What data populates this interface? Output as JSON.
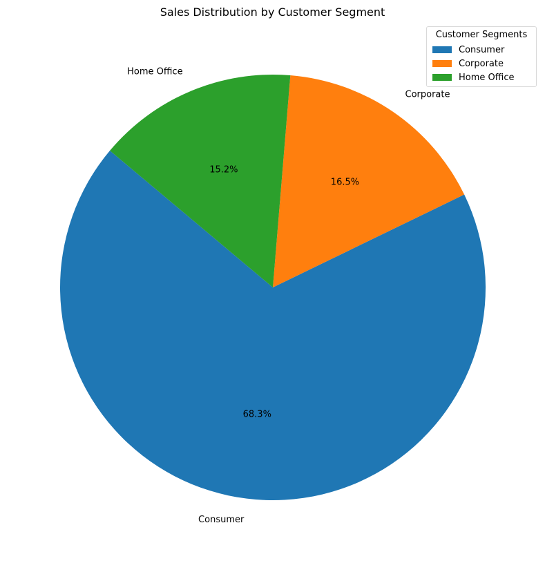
{
  "chart_data": {
    "type": "pie",
    "title": "Sales Distribution by Customer Segment",
    "categories": [
      "Consumer",
      "Corporate",
      "Home Office"
    ],
    "values": [
      68.3,
      16.5,
      15.2
    ],
    "value_labels": [
      "68.3%",
      "16.5%",
      "15.2%"
    ],
    "colors": [
      "#1f77b4",
      "#ff7f0e",
      "#2ca02c"
    ],
    "start_angle_deg": 140,
    "direction": "counterclockwise",
    "legend": {
      "title": "Customer Segments",
      "placement": "top-right",
      "entries": [
        "Consumer",
        "Corporate",
        "Home Office"
      ]
    }
  }
}
